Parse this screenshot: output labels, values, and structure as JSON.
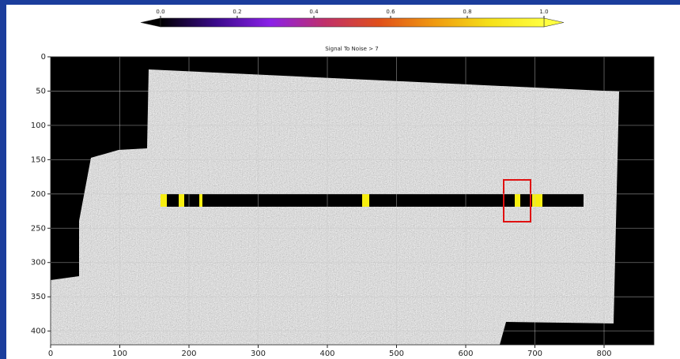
{
  "chart_data": {
    "type": "image",
    "title": "Signal To Noise > 7",
    "xlim": [
      0,
      872
    ],
    "ylim": [
      420,
      0
    ],
    "xticks": [
      0,
      100,
      200,
      300,
      400,
      500,
      600,
      700,
      800
    ],
    "yticks": [
      0,
      50,
      100,
      150,
      200,
      250,
      300,
      350,
      400
    ],
    "grid": true,
    "colorbar": {
      "lim": [
        0,
        1
      ],
      "ticks": [
        {
          "value": 0,
          "label": "0.0"
        },
        0.2,
        0.4,
        0.6,
        0.8,
        {
          "value": 1,
          "label": "1.0"
        }
      ],
      "colors": [
        "#000000",
        "#3a0a8a",
        "#8a20e8",
        "#c0306a",
        "#e0501a",
        "#f09a10",
        "#f5e018",
        "#ffff40"
      ]
    }
  }
}
